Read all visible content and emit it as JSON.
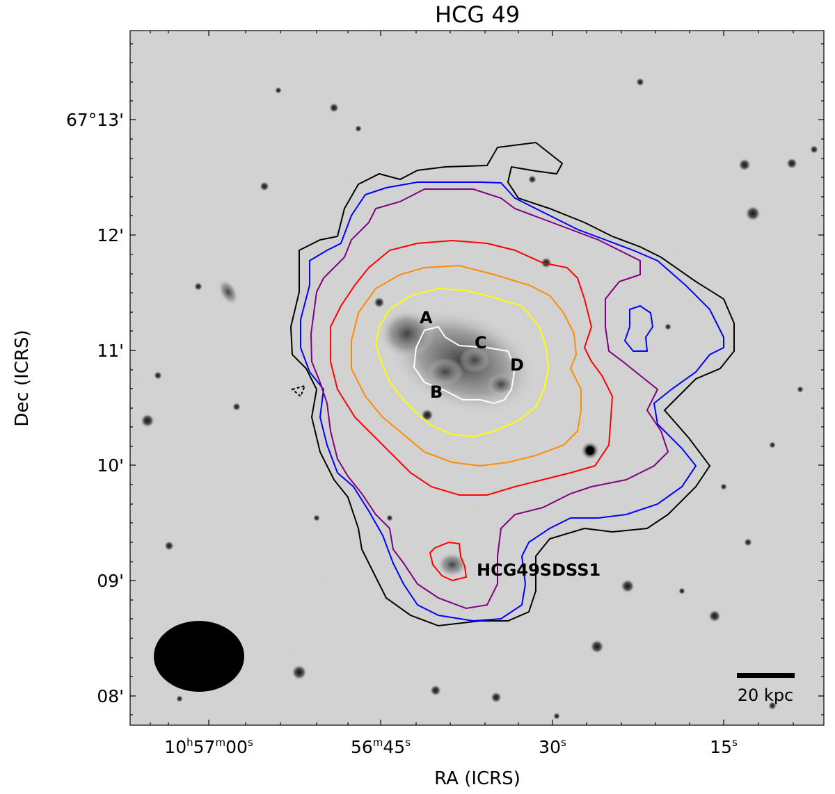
{
  "title": "HCG 49",
  "xlabel": "RA (ICRS)",
  "ylabel": "Dec (ICRS)",
  "x_ticks": [
    {
      "base": "10",
      "h": "h",
      "b57": "57",
      "m": "m",
      "b00": "00",
      "s": "s"
    },
    {
      "base": "56",
      "m": "m",
      "b45": "45",
      "s": "s"
    },
    {
      "base": "30",
      "s": "s"
    },
    {
      "base": "15",
      "s": "s"
    }
  ],
  "y_ticks": [
    "67°13'",
    "12'",
    "11'",
    "10'",
    "09'",
    "08'"
  ],
  "galaxy_labels": [
    "A",
    "B",
    "C",
    "D"
  ],
  "companion_label": "HCG49SDSS1",
  "scalebar_label": "20 kpc",
  "contour_colors": [
    "#000000",
    "#0000ff",
    "#800080",
    "#ff0000",
    "#ff8c00",
    "#ffff00",
    "#ffffff"
  ]
}
